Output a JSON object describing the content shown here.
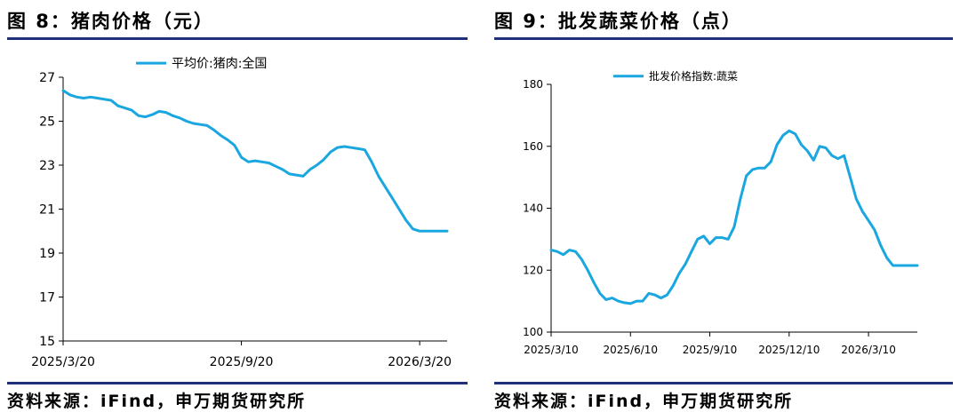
{
  "left": {
    "title": "图 8：猪肉价格（元）",
    "source": "资料来源：iFind，申万期货研究所"
  },
  "right": {
    "title": "图 9：批发蔬菜价格（点）",
    "source": "资料来源：iFind，申万期货研究所"
  },
  "colors": {
    "series": "#1aa7e0",
    "rule": "#1f2f7a",
    "axis": "#000000"
  },
  "chart_data": [
    {
      "type": "line",
      "title": "图 8：猪肉价格（元）",
      "legend": "平均价:猪肉:全国",
      "legend_position": "top-center",
      "ylim": [
        15,
        27
      ],
      "yticks": [
        15,
        17,
        19,
        21,
        23,
        25,
        27
      ],
      "xlim": [
        0,
        56
      ],
      "xticks": [
        {
          "x": 0,
          "label": "2025/3/20"
        },
        {
          "x": 26,
          "label": "2025/9/20"
        },
        {
          "x": 52,
          "label": "2026/3/20"
        }
      ],
      "series": [
        {
          "name": "平均价:猪肉:全国",
          "x": [
            0,
            1,
            2,
            3,
            4,
            5,
            6,
            7,
            8,
            9,
            10,
            11,
            12,
            13,
            14,
            15,
            16,
            17,
            18,
            19,
            20,
            21,
            22,
            23,
            24,
            25,
            26,
            27,
            28,
            29,
            30,
            31,
            32,
            33,
            34,
            35,
            36,
            37,
            38,
            39,
            40,
            41,
            42,
            43,
            44,
            45,
            46,
            47,
            48,
            49,
            50,
            51,
            52,
            53,
            54,
            55,
            56
          ],
          "values": [
            26.4,
            26.2,
            26.1,
            26.05,
            26.1,
            26.05,
            26.0,
            25.95,
            25.7,
            25.6,
            25.5,
            25.25,
            25.2,
            25.3,
            25.45,
            25.4,
            25.25,
            25.15,
            25.0,
            24.9,
            24.85,
            24.8,
            24.6,
            24.35,
            24.15,
            23.9,
            23.35,
            23.15,
            23.2,
            23.15,
            23.1,
            22.95,
            22.8,
            22.6,
            22.55,
            22.5,
            22.8,
            23.0,
            23.25,
            23.6,
            23.8,
            23.85,
            23.8,
            23.75,
            23.7,
            23.15,
            22.5,
            22.0,
            21.5,
            21.0,
            20.5,
            20.1,
            20.0,
            20.0,
            20.0,
            20.0,
            20.0
          ]
        }
      ]
    },
    {
      "type": "line",
      "title": "图 9：批发蔬菜价格（点）",
      "legend": "批发价格指数:蔬菜",
      "legend_position": "top-center",
      "ylim": [
        100,
        180
      ],
      "yticks": [
        100,
        120,
        140,
        160,
        180
      ],
      "xlim": [
        0,
        60
      ],
      "xticks": [
        {
          "x": 0,
          "label": "2025/3/10"
        },
        {
          "x": 13,
          "label": "2025/6/10"
        },
        {
          "x": 26,
          "label": "2025/9/10"
        },
        {
          "x": 39,
          "label": "2025/12/10"
        },
        {
          "x": 52,
          "label": "2026/3/10"
        }
      ],
      "series": [
        {
          "name": "批发价格指数:蔬菜",
          "x": [
            0,
            1,
            2,
            3,
            4,
            5,
            6,
            7,
            8,
            9,
            10,
            11,
            12,
            13,
            14,
            15,
            16,
            17,
            18,
            19,
            20,
            21,
            22,
            23,
            24,
            25,
            26,
            27,
            28,
            29,
            30,
            31,
            32,
            33,
            34,
            35,
            36,
            37,
            38,
            39,
            40,
            41,
            42,
            43,
            44,
            45,
            46,
            47,
            48,
            49,
            50,
            51,
            52,
            53,
            54,
            55,
            56,
            57,
            58,
            59,
            60
          ],
          "values": [
            126.5,
            126,
            125,
            126.5,
            126,
            123.5,
            120,
            116,
            112.5,
            110.5,
            111,
            110,
            109.5,
            109.2,
            110,
            110,
            112.5,
            112,
            111,
            112,
            115,
            119,
            122,
            126,
            130,
            131,
            128.5,
            130.5,
            130.5,
            130,
            134,
            143,
            150.5,
            152.5,
            153,
            153,
            155,
            160.5,
            163.5,
            165,
            164,
            160.5,
            158.5,
            155.5,
            160,
            159.5,
            157,
            156,
            157,
            150,
            143,
            139,
            136,
            133,
            128,
            124,
            121.5,
            121.5,
            121.5,
            121.5,
            121.5
          ]
        }
      ]
    }
  ]
}
